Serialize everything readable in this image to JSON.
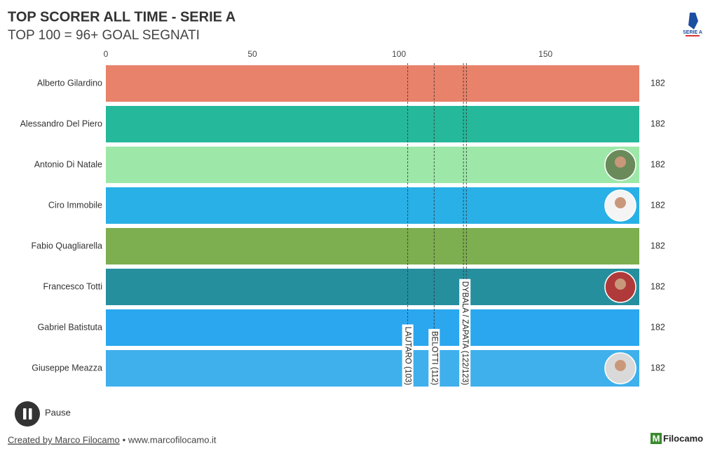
{
  "chart_data": {
    "type": "bar",
    "orientation": "horizontal",
    "title": "TOP SCORER ALL TIME - SERIE A",
    "subtitle": "TOP 100 = 96+ GOAL SEGNATI",
    "categories": [
      "Alberto Gilardino",
      "Alessandro Del Piero",
      "Antonio Di Natale",
      "Ciro Immobile",
      "Fabio Quagliarella",
      "Francesco Totti",
      "Gabriel Batistuta",
      "Giuseppe Meazza"
    ],
    "values": [
      182,
      182,
      182,
      182,
      182,
      182,
      182,
      182
    ],
    "colors": [
      "#e8826a",
      "#26b89a",
      "#9de8a8",
      "#29b0e6",
      "#7dae4f",
      "#258f9e",
      "#2aa7ef",
      "#3fb0ec"
    ],
    "xlim": [
      0,
      182
    ],
    "xticks": [
      0,
      50,
      100,
      150
    ],
    "grid": false,
    "reference_lines": [
      {
        "label": "LAUTARO (103)",
        "values": [
          103
        ]
      },
      {
        "label": "BELOTTI (112)",
        "values": [
          112
        ]
      },
      {
        "label": "DYBALA / ZAPATA (122/123)",
        "values": [
          122,
          123
        ]
      }
    ]
  },
  "logo": {
    "league": "SERIE A",
    "brand_mark": "M",
    "brand": "Filocamo"
  },
  "controls": {
    "button": "Pause"
  },
  "footer": {
    "credit": "Created by Marco Filocamo",
    "site": "• www.marcofilocamo.it"
  }
}
